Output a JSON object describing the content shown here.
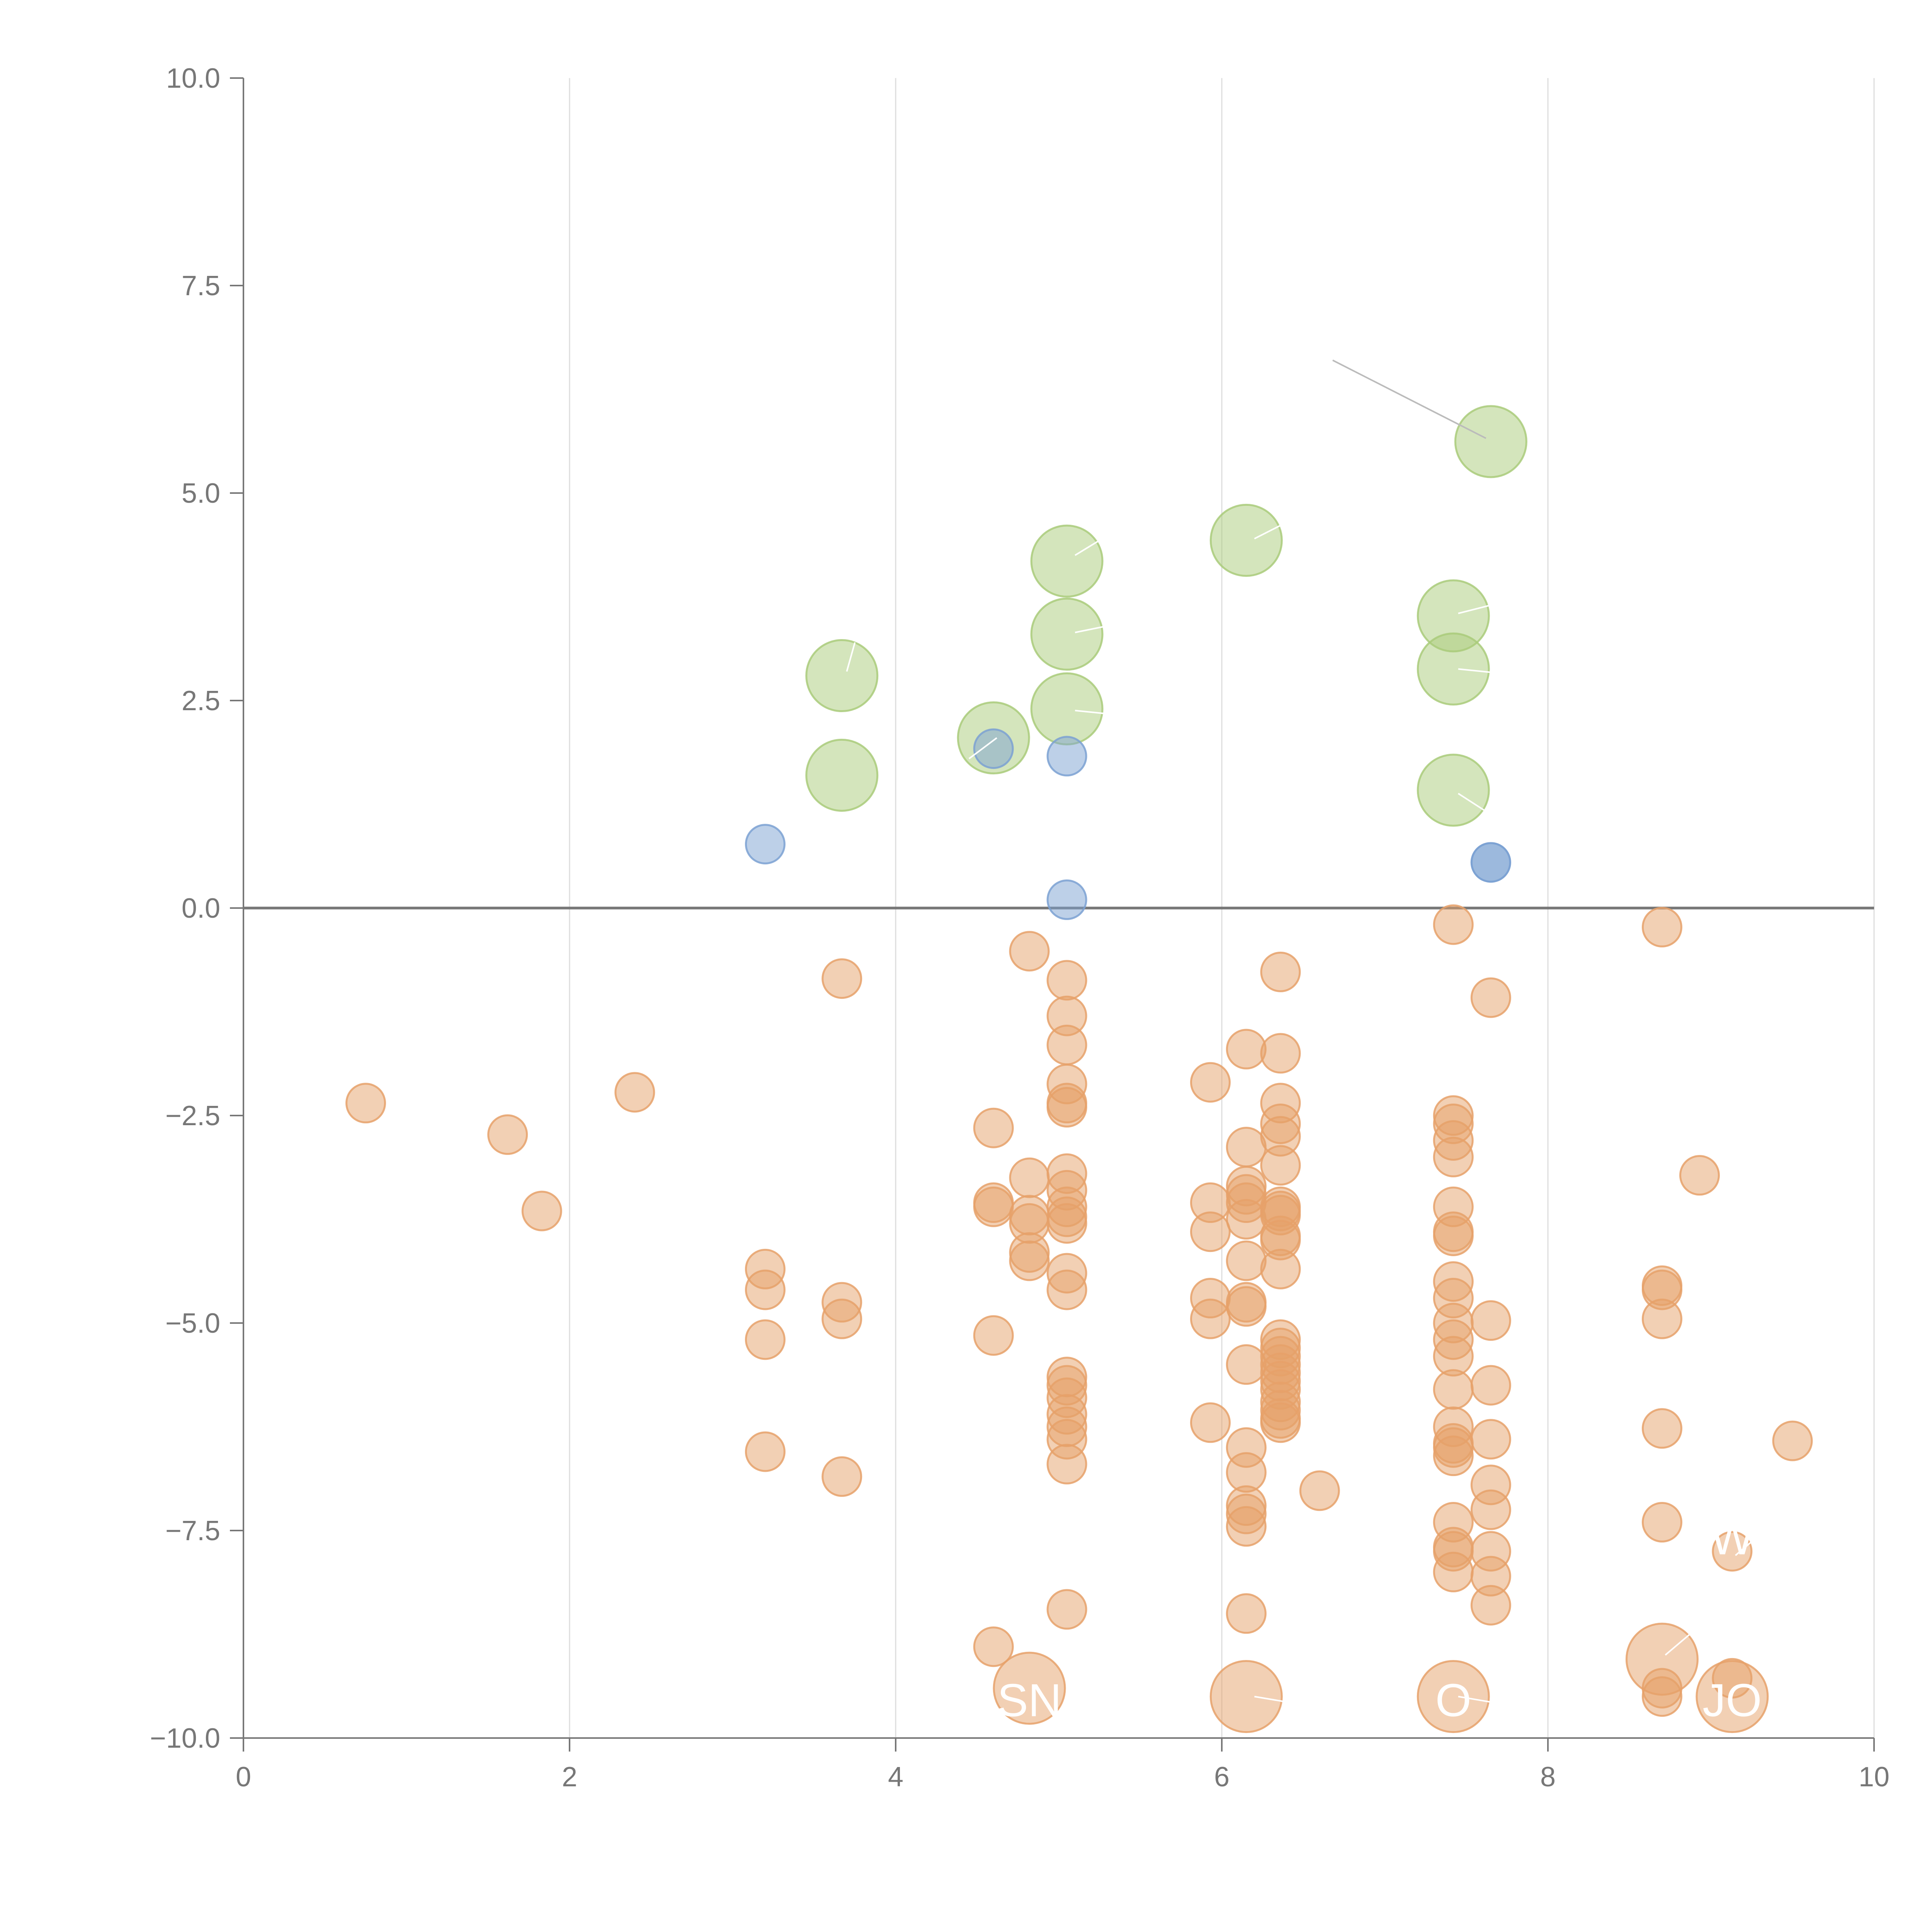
{
  "chart_data": {
    "type": "scatter",
    "title": "",
    "xlabel": "",
    "ylabel": "",
    "xlim": [
      0,
      10
    ],
    "ylim": [
      -10,
      10
    ],
    "x_ticks": [
      "0",
      "2",
      "4",
      "6",
      "8",
      "10"
    ],
    "y_ticks": [
      "10.0",
      "7.5",
      "5.0",
      "2.5",
      "0.0",
      "−2.5",
      "−5.0",
      "−7.5",
      "−10.0"
    ],
    "x_tick_values": [
      0,
      2,
      4,
      6,
      8,
      10
    ],
    "y_tick_values": [
      10,
      7.5,
      5,
      2.5,
      0,
      -2.5,
      -5,
      -7.5,
      -10
    ],
    "grid": "vertical",
    "zero_line": true,
    "legend": "none",
    "colors": {
      "green": "#a9cb7a",
      "blue": "#7ba1d2",
      "orange": "#e6a16a",
      "axis": "#777777",
      "grid": "#dddddd",
      "leader": "#bbbbbb"
    },
    "series": [
      {
        "color": "#a9cb7a",
        "size": "large",
        "points": [
          [
            7.65,
            5.62
          ],
          [
            6.15,
            4.43
          ],
          [
            5.05,
            4.18
          ],
          [
            5.05,
            3.3
          ],
          [
            5.05,
            2.4
          ],
          [
            7.42,
            3.52
          ],
          [
            7.42,
            2.88
          ],
          [
            7.42,
            1.42
          ],
          [
            3.67,
            2.8
          ],
          [
            3.67,
            1.6
          ],
          [
            4.6,
            2.05
          ]
        ]
      },
      {
        "color": "#7ba1d2",
        "size": "small",
        "points": [
          [
            4.6,
            1.92
          ],
          [
            5.05,
            1.83
          ],
          [
            3.2,
            0.77
          ],
          [
            5.05,
            0.1
          ],
          [
            7.65,
            0.55
          ],
          [
            7.65,
            0.55
          ]
        ]
      },
      {
        "color": "#e6a16a",
        "size": "small",
        "points": [
          [
            0.75,
            -2.35
          ],
          [
            1.62,
            -2.73
          ],
          [
            1.83,
            -3.65
          ],
          [
            2.4,
            -2.22
          ],
          [
            3.2,
            -4.35
          ],
          [
            3.2,
            -4.6
          ],
          [
            3.2,
            -5.2
          ],
          [
            3.2,
            -6.55
          ],
          [
            3.67,
            -0.85
          ],
          [
            3.67,
            -4.75
          ],
          [
            3.67,
            -4.95
          ],
          [
            3.67,
            -6.85
          ],
          [
            4.6,
            -2.65
          ],
          [
            4.6,
            -3.55
          ],
          [
            4.6,
            -3.6
          ],
          [
            4.6,
            -5.15
          ],
          [
            4.6,
            -8.9
          ],
          [
            4.82,
            -0.52
          ],
          [
            4.82,
            -3.25
          ],
          [
            4.82,
            -3.7
          ],
          [
            4.82,
            -3.8
          ],
          [
            4.82,
            -4.15
          ],
          [
            4.82,
            -4.25
          ],
          [
            5.05,
            -0.87
          ],
          [
            5.05,
            -1.3
          ],
          [
            5.05,
            -1.65
          ],
          [
            5.05,
            -2.12
          ],
          [
            5.05,
            -2.35
          ],
          [
            5.05,
            -2.4
          ],
          [
            5.05,
            -3.2
          ],
          [
            5.05,
            -3.4
          ],
          [
            5.05,
            -3.6
          ],
          [
            5.05,
            -3.72
          ],
          [
            5.05,
            -3.8
          ],
          [
            5.05,
            -4.4
          ],
          [
            5.05,
            -4.6
          ],
          [
            5.05,
            -5.65
          ],
          [
            5.05,
            -5.75
          ],
          [
            5.05,
            -5.9
          ],
          [
            5.05,
            -6.1
          ],
          [
            5.05,
            -6.25
          ],
          [
            5.05,
            -6.4
          ],
          [
            5.05,
            -6.7
          ],
          [
            5.05,
            -8.45
          ],
          [
            5.93,
            -2.1
          ],
          [
            5.93,
            -3.55
          ],
          [
            5.93,
            -3.9
          ],
          [
            5.93,
            -4.7
          ],
          [
            5.93,
            -4.95
          ],
          [
            5.93,
            -6.2
          ],
          [
            6.15,
            -1.7
          ],
          [
            6.15,
            -2.88
          ],
          [
            6.15,
            -3.35
          ],
          [
            6.15,
            -3.45
          ],
          [
            6.15,
            -3.55
          ],
          [
            6.15,
            -3.75
          ],
          [
            6.15,
            -4.25
          ],
          [
            6.15,
            -4.75
          ],
          [
            6.15,
            -4.8
          ],
          [
            6.15,
            -5.5
          ],
          [
            6.15,
            -6.5
          ],
          [
            6.15,
            -6.8
          ],
          [
            6.15,
            -7.2
          ],
          [
            6.15,
            -7.3
          ],
          [
            6.15,
            -7.45
          ],
          [
            6.15,
            -8.5
          ],
          [
            6.36,
            -0.77
          ],
          [
            6.36,
            -1.75
          ],
          [
            6.36,
            -2.35
          ],
          [
            6.36,
            -2.6
          ],
          [
            6.36,
            -2.75
          ],
          [
            6.36,
            -3.1
          ],
          [
            6.36,
            -3.6
          ],
          [
            6.36,
            -3.65
          ],
          [
            6.36,
            -3.7
          ],
          [
            6.36,
            -3.95
          ],
          [
            6.36,
            -4.0
          ],
          [
            6.36,
            -4.35
          ],
          [
            6.36,
            -5.2
          ],
          [
            6.36,
            -5.3
          ],
          [
            6.36,
            -5.4
          ],
          [
            6.36,
            -5.5
          ],
          [
            6.36,
            -5.6
          ],
          [
            6.36,
            -5.7
          ],
          [
            6.36,
            -5.8
          ],
          [
            6.36,
            -5.95
          ],
          [
            6.36,
            -6.05
          ],
          [
            6.36,
            -6.15
          ],
          [
            6.36,
            -6.2
          ],
          [
            6.6,
            -7.02
          ],
          [
            7.42,
            -0.2
          ],
          [
            7.42,
            -2.5
          ],
          [
            7.42,
            -2.6
          ],
          [
            7.42,
            -2.8
          ],
          [
            7.42,
            -3.0
          ],
          [
            7.42,
            -3.6
          ],
          [
            7.42,
            -3.9
          ],
          [
            7.42,
            -3.95
          ],
          [
            7.42,
            -4.5
          ],
          [
            7.42,
            -4.7
          ],
          [
            7.42,
            -5.0
          ],
          [
            7.42,
            -5.2
          ],
          [
            7.42,
            -5.4
          ],
          [
            7.42,
            -5.8
          ],
          [
            7.42,
            -6.25
          ],
          [
            7.42,
            -6.45
          ],
          [
            7.42,
            -6.5
          ],
          [
            7.42,
            -6.6
          ],
          [
            7.42,
            -7.4
          ],
          [
            7.42,
            -7.7
          ],
          [
            7.42,
            -7.75
          ],
          [
            7.42,
            -8.0
          ],
          [
            7.65,
            -1.08
          ],
          [
            7.65,
            -4.97
          ],
          [
            7.65,
            -5.75
          ],
          [
            7.65,
            -6.4
          ],
          [
            7.65,
            -6.95
          ],
          [
            7.65,
            -7.25
          ],
          [
            7.65,
            -7.75
          ],
          [
            7.65,
            -8.05
          ],
          [
            7.65,
            -8.4
          ],
          [
            8.7,
            -0.23
          ],
          [
            8.7,
            -4.55
          ],
          [
            8.7,
            -4.6
          ],
          [
            8.7,
            -4.95
          ],
          [
            8.7,
            -6.27
          ],
          [
            8.7,
            -7.4
          ],
          [
            8.7,
            -9.4
          ],
          [
            8.7,
            -9.5
          ],
          [
            8.93,
            -3.22
          ],
          [
            9.13,
            -7.75
          ],
          [
            9.13,
            -9.28
          ],
          [
            9.5,
            -6.42
          ]
        ]
      },
      {
        "color": "#e6a16a",
        "size": "large",
        "points": [
          [
            4.82,
            -9.4
          ],
          [
            6.15,
            -9.5
          ],
          [
            7.42,
            -9.5
          ],
          [
            8.7,
            -9.05
          ],
          [
            9.13,
            -9.5
          ]
        ]
      }
    ],
    "labels": [
      {
        "text": "SN",
        "x": 4.82,
        "y": -9.55
      },
      {
        "text": "O",
        "x": 7.42,
        "y": -9.55
      },
      {
        "text": "JO",
        "x": 9.13,
        "y": -9.55
      },
      {
        "text": "W",
        "x": 9.13,
        "y": -7.6
      }
    ],
    "leaders": [
      {
        "from": [
          6.68,
          6.6
        ],
        "to": [
          7.62,
          5.66
        ],
        "color": "#bbbbbb"
      },
      {
        "from": [
          5.1,
          4.25
        ],
        "to": [
          5.35,
          4.55
        ],
        "color": "#ffffff"
      },
      {
        "from": [
          6.2,
          4.45
        ],
        "to": [
          6.5,
          4.75
        ],
        "color": "#ffffff"
      },
      {
        "from": [
          5.1,
          3.32
        ],
        "to": [
          5.35,
          3.42
        ],
        "color": "#ffffff"
      },
      {
        "from": [
          5.1,
          2.38
        ],
        "to": [
          5.4,
          2.32
        ],
        "color": "#ffffff"
      },
      {
        "from": [
          7.45,
          3.55
        ],
        "to": [
          7.75,
          3.7
        ],
        "color": "#ffffff"
      },
      {
        "from": [
          7.45,
          2.88
        ],
        "to": [
          7.75,
          2.82
        ],
        "color": "#ffffff"
      },
      {
        "from": [
          7.45,
          1.38
        ],
        "to": [
          7.75,
          1.0
        ],
        "color": "#ffffff"
      },
      {
        "from": [
          3.7,
          2.85
        ],
        "to": [
          3.75,
          3.2
        ],
        "color": "#ffffff"
      },
      {
        "from": [
          4.62,
          2.05
        ],
        "to": [
          4.45,
          1.8
        ],
        "color": "#ffffff"
      },
      {
        "from": [
          6.2,
          -9.5
        ],
        "to": [
          6.5,
          -9.6
        ],
        "color": "#ffffff"
      },
      {
        "from": [
          7.45,
          -9.5
        ],
        "to": [
          7.75,
          -9.6
        ],
        "color": "#ffffff"
      },
      {
        "from": [
          8.72,
          -9.0
        ],
        "to": [
          8.9,
          -8.7
        ],
        "color": "#ffffff"
      },
      {
        "from": [
          9.15,
          -7.8
        ],
        "to": [
          9.3,
          -7.55
        ],
        "color": "#ffffff"
      }
    ]
  }
}
